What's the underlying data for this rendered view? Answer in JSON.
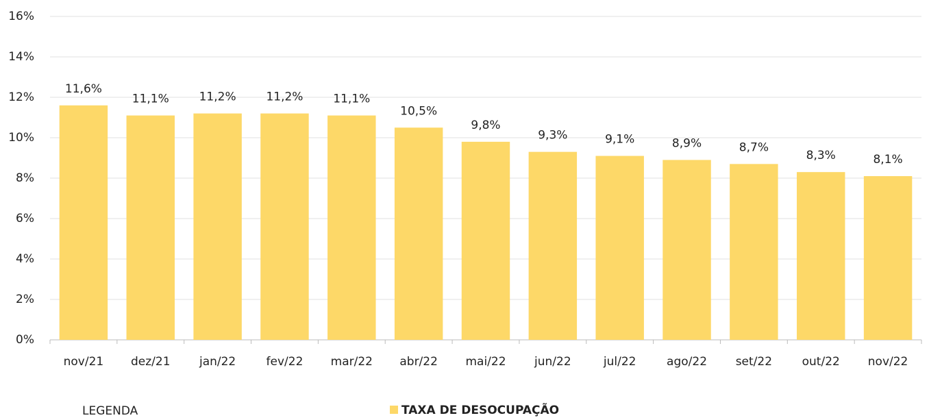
{
  "chart_data": {
    "type": "bar",
    "categories": [
      "nov/21",
      "dez/21",
      "jan/22",
      "fev/22",
      "mar/22",
      "abr/22",
      "mai/22",
      "jun/22",
      "jul/22",
      "ago/22",
      "set/22",
      "out/22",
      "nov/22"
    ],
    "series": [
      {
        "name": "TAXA DE DESOCUPAÇÃO",
        "color": "#fdd868",
        "values": [
          11.6,
          11.1,
          11.2,
          11.2,
          11.1,
          10.5,
          9.8,
          9.3,
          9.1,
          8.9,
          8.7,
          8.3,
          8.1
        ],
        "value_labels": [
          "11,6%",
          "11,1%",
          "11,2%",
          "11,2%",
          "11,1%",
          "10,5%",
          "9,8%",
          "9,3%",
          "9,1%",
          "8,9%",
          "8,7%",
          "8,3%",
          "8,1%"
        ]
      }
    ],
    "ylim": [
      0,
      16
    ],
    "yticks": [
      {
        "value": 0,
        "label": "0%"
      },
      {
        "value": 2,
        "label": "2%"
      },
      {
        "value": 4,
        "label": "4%"
      },
      {
        "value": 6,
        "label": "6%"
      },
      {
        "value": 8,
        "label": "8%"
      },
      {
        "value": 10,
        "label": "10%"
      },
      {
        "value": 12,
        "label": "12%"
      },
      {
        "value": 14,
        "label": "14%"
      },
      {
        "value": 16,
        "label": "16%"
      }
    ],
    "grid": true,
    "legend_title": "LEGENDA"
  }
}
